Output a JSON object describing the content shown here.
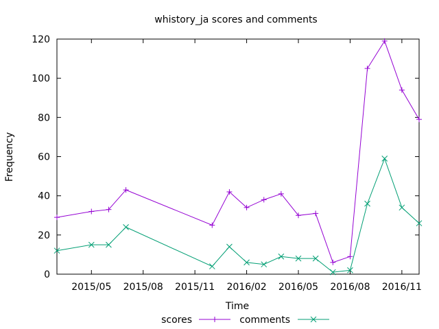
{
  "chart_data": {
    "type": "line",
    "title": "whistory_ja scores and comments",
    "xlabel": "Time",
    "ylabel": "Frequency",
    "x_type": "date",
    "xlim": [
      "2015-03-01",
      "2016-12-01"
    ],
    "ylim": [
      0,
      120
    ],
    "x_ticks": [
      "2015/05",
      "2015/08",
      "2015/11",
      "2016/02",
      "2016/05",
      "2016/08",
      "2016/11"
    ],
    "x_tick_dates": [
      "2015-05-01",
      "2015-08-01",
      "2015-11-01",
      "2016-02-01",
      "2016-05-01",
      "2016-08-01",
      "2016-11-01"
    ],
    "y_ticks": [
      0,
      20,
      40,
      60,
      80,
      100,
      120
    ],
    "grid": false,
    "legend_position": "bottom",
    "series": [
      {
        "name": "scores",
        "color": "#9400d3",
        "marker": "plus",
        "x": [
          "2015-03-01",
          "2015-05-01",
          "2015-06-01",
          "2015-07-01",
          "2015-12-01",
          "2016-01-01",
          "2016-02-01",
          "2016-03-01",
          "2016-04-01",
          "2016-05-01",
          "2016-06-01",
          "2016-07-01",
          "2016-08-01",
          "2016-09-01",
          "2016-10-01",
          "2016-11-01",
          "2016-12-01"
        ],
        "values": [
          29,
          32,
          33,
          43,
          25,
          42,
          34,
          38,
          41,
          30,
          31,
          6,
          9,
          105,
          119,
          94,
          79
        ]
      },
      {
        "name": "comments",
        "color": "#009e73",
        "marker": "cross",
        "x": [
          "2015-03-01",
          "2015-05-01",
          "2015-06-01",
          "2015-07-01",
          "2015-12-01",
          "2016-01-01",
          "2016-02-01",
          "2016-03-01",
          "2016-04-01",
          "2016-05-01",
          "2016-06-01",
          "2016-07-01",
          "2016-08-01",
          "2016-09-01",
          "2016-10-01",
          "2016-11-01",
          "2016-12-01"
        ],
        "values": [
          12,
          15,
          15,
          24,
          4,
          14,
          6,
          5,
          9,
          8,
          8,
          1,
          2,
          36,
          59,
          34,
          26
        ]
      }
    ]
  }
}
